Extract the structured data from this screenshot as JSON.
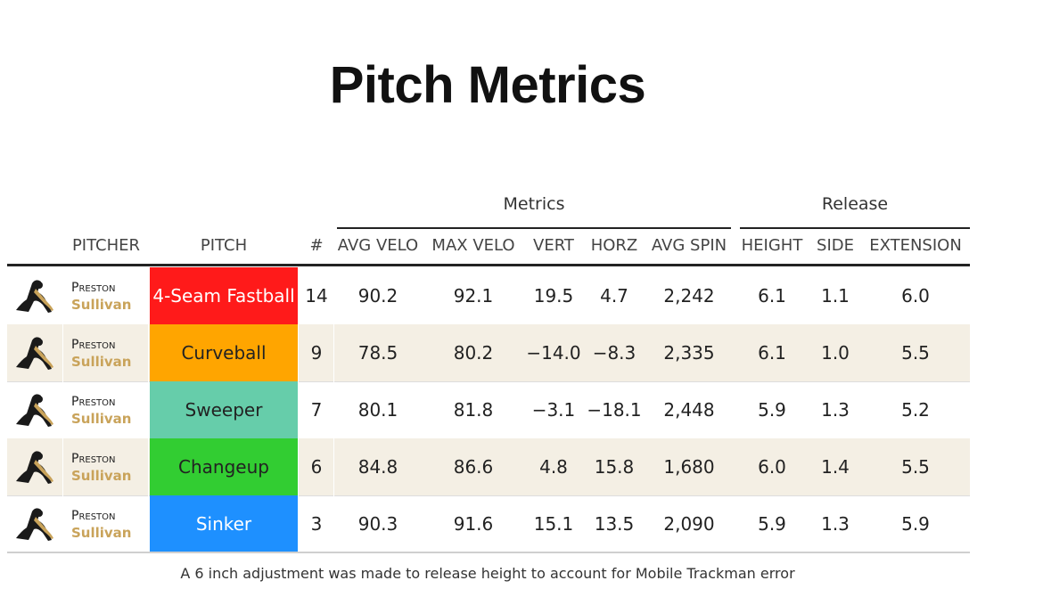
{
  "title": "Pitch Metrics",
  "groups": {
    "metrics": "Metrics",
    "release": "Release"
  },
  "columns": {
    "pitcher": "PITCHER",
    "pitch": "PITCH",
    "count": "#",
    "avg_velo": "AVG VELO",
    "max_velo": "MAX VELO",
    "vert": "VERT",
    "horz": "HORZ",
    "avg_spin": "AVG SPIN",
    "height": "HEIGHT",
    "side": "SIDE",
    "extension": "EXTENSION"
  },
  "colors": {
    "4-Seam Fastball": "#ff1a1a",
    "Curveball": "#ffa500",
    "Sweeper": "#66cdaa",
    "Changeup": "#32cd32",
    "Sinker": "#1e90ff",
    "name_gold": "#c9a35a",
    "alt_row": "#f4efe4"
  },
  "chart_data": {
    "type": "table",
    "title": "Pitch Metrics",
    "rows": [
      {
        "pitcher_first": "Preston",
        "pitcher_last": "Sullivan",
        "pitch": "4-Seam Fastball",
        "count": "14",
        "avg_velo": "90.2",
        "max_velo": "92.1",
        "vert": "19.5",
        "horz": "4.7",
        "avg_spin": "2,242",
        "height": "6.1",
        "side": "1.1",
        "extension": "6.0",
        "pitch_color": "#ff1a1a",
        "text_color": "#ffffff"
      },
      {
        "pitcher_first": "Preston",
        "pitcher_last": "Sullivan",
        "pitch": "Curveball",
        "count": "9",
        "avg_velo": "78.5",
        "max_velo": "80.2",
        "vert": "−14.0",
        "horz": "−8.3",
        "avg_spin": "2,335",
        "height": "6.1",
        "side": "1.0",
        "extension": "5.5",
        "pitch_color": "#ffa500",
        "text_color": "#222222"
      },
      {
        "pitcher_first": "Preston",
        "pitcher_last": "Sullivan",
        "pitch": "Sweeper",
        "count": "7",
        "avg_velo": "80.1",
        "max_velo": "81.8",
        "vert": "−3.1",
        "horz": "−18.1",
        "avg_spin": "2,448",
        "height": "5.9",
        "side": "1.3",
        "extension": "5.2",
        "pitch_color": "#66cdaa",
        "text_color": "#222222"
      },
      {
        "pitcher_first": "Preston",
        "pitcher_last": "Sullivan",
        "pitch": "Changeup",
        "count": "6",
        "avg_velo": "84.8",
        "max_velo": "86.6",
        "vert": "4.8",
        "horz": "15.8",
        "avg_spin": "1,680",
        "height": "6.0",
        "side": "1.4",
        "extension": "5.5",
        "pitch_color": "#32cd32",
        "text_color": "#222222"
      },
      {
        "pitcher_first": "Preston",
        "pitcher_last": "Sullivan",
        "pitch": "Sinker",
        "count": "3",
        "avg_velo": "90.3",
        "max_velo": "91.6",
        "vert": "15.1",
        "horz": "13.5",
        "avg_spin": "2,090",
        "height": "5.9",
        "side": "1.3",
        "extension": "5.9",
        "pitch_color": "#1e90ff",
        "text_color": "#ffffff"
      }
    ]
  },
  "footnote": "A 6 inch adjustment was made to release height to account for Mobile Trackman error"
}
